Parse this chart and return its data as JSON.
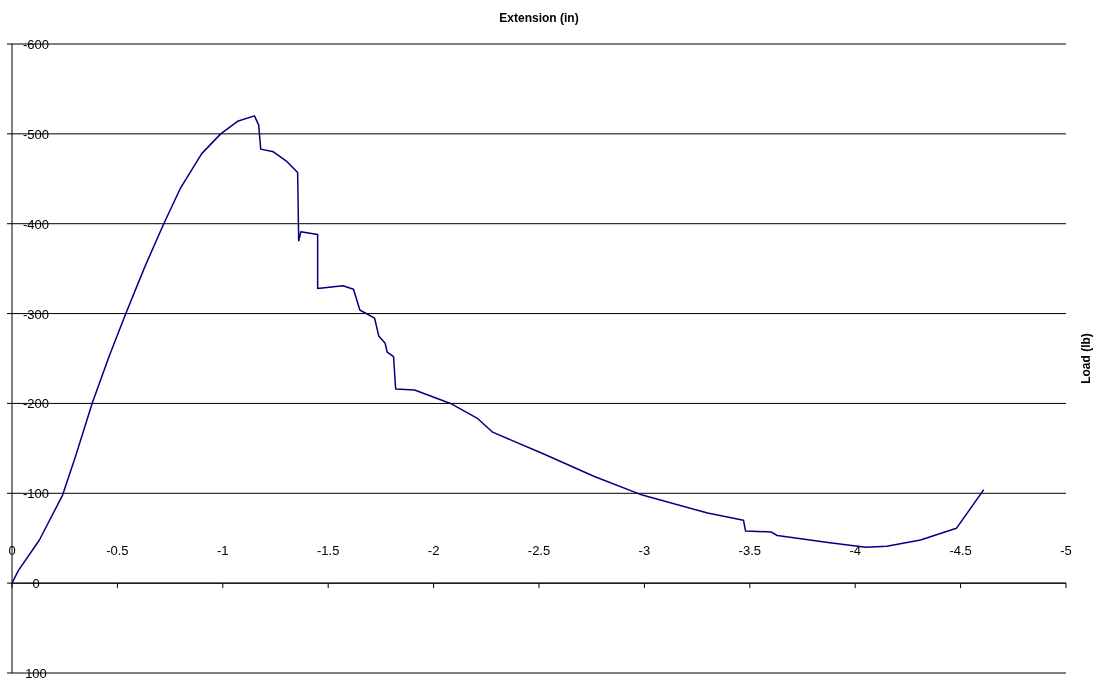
{
  "chart_data": {
    "type": "line",
    "xlabel": "Extension (in)",
    "ylabel": "Load (lb)",
    "xlim": [
      0,
      -5
    ],
    "xticks": [
      0,
      -0.5,
      -1,
      -1.5,
      -2,
      -2.5,
      -3,
      -3.5,
      -4,
      -4.5,
      -5
    ],
    "ylim": [
      100,
      -600
    ],
    "yticks": [
      -600,
      -500,
      -400,
      -300,
      -200,
      -100,
      0,
      100
    ],
    "grid": "y",
    "marker": "none",
    "line_style": "solid",
    "series": [
      {
        "color": "#000080",
        "x": [
          0,
          -0.03,
          -0.13,
          -0.24,
          -0.3,
          -0.38,
          -0.46,
          -0.54,
          -0.63,
          -0.72,
          -0.8,
          -0.9,
          -0.99,
          -1.07,
          -1.15,
          -1.17,
          -1.18,
          -1.24,
          -1.3,
          -1.355,
          -1.36,
          -1.37,
          -1.45,
          -1.45,
          -1.57,
          -1.62,
          -1.65,
          -1.72,
          -1.74,
          -1.77,
          -1.78,
          -1.81,
          -1.82,
          -1.91,
          -2.08,
          -2.21,
          -2.28,
          -2.52,
          -2.76,
          -2.99,
          -3.3,
          -3.47,
          -3.48,
          -3.6,
          -3.63,
          -3.88,
          -4.05,
          -4.15,
          -4.31,
          -4.48,
          -4.61
        ],
        "values": [
          0,
          -14,
          -48,
          -98,
          -140,
          -200,
          -252,
          -300,
          -352,
          -400,
          -440,
          -478,
          -500,
          -514,
          -520,
          -510,
          -483,
          -480,
          -470,
          -457,
          -381,
          -391,
          -388,
          -328,
          -331,
          -327,
          -304,
          -295,
          -275,
          -267,
          -257,
          -252,
          -216,
          -215,
          -200,
          -183,
          -168,
          -144,
          -119,
          -98,
          -78,
          -70,
          -58,
          -57,
          -53,
          -45,
          -40,
          -41,
          -48,
          -61,
          -104
        ]
      }
    ]
  }
}
